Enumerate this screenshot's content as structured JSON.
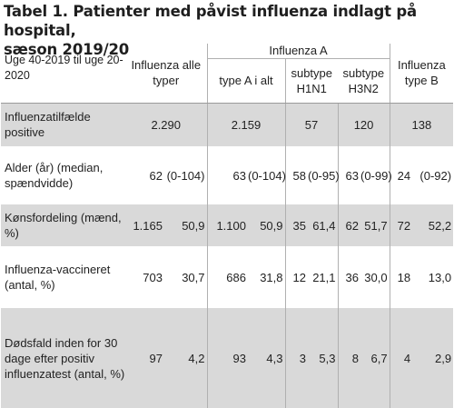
{
  "title_line1": "Tabel 1. Patienter med påvist influenza indlagt på hospital,",
  "title_line2": "sæson 2019/20",
  "header": {
    "period_label": "Uge 40-2019 til uge 20-2020",
    "all_types": "Influenza alle typer",
    "influenza_a": "Influenza A",
    "type_a_total": "type A i alt",
    "h1n1": "subtype H1N1",
    "h3n2": "subtype H3N2",
    "type_b": "Influenza type B"
  },
  "rows": [
    {
      "label": "Influenzatilfælde positive",
      "all": "2.290",
      "a_total": "2.159",
      "h1n1": "57",
      "h3n2": "120",
      "b": "138"
    },
    {
      "label": "Alder (år) (median, spændvidde)",
      "all_v": "62",
      "all_r": "(0-104)",
      "a_v": "63",
      "a_r": "(0-104)",
      "h1_v": "58",
      "h1_r": "(0-95)",
      "h3_v": "63",
      "h3_r": "(0-99)",
      "b_v": "24",
      "b_r": "(0-92)"
    },
    {
      "label": "Kønsfordeling (mænd, %)",
      "all_v": "1.165",
      "all_r": "50,9",
      "a_v": "1.100",
      "a_r": "50,9",
      "h1_v": "35",
      "h1_r": "61,4",
      "h3_v": "62",
      "h3_r": "51,7",
      "b_v": "72",
      "b_r": "52,2"
    },
    {
      "label": "Influenza-vaccineret (antal, %)",
      "all_v": "703",
      "all_r": "30,7",
      "a_v": "686",
      "a_r": "31,8",
      "h1_v": "12",
      "h1_r": "21,1",
      "h3_v": "36",
      "h3_r": "30,0",
      "b_v": "18",
      "b_r": "13,0"
    },
    {
      "label": "Dødsfald inden for 30 dage efter positiv influenzatest (antal, %)",
      "all_v": "97",
      "all_r": "4,2",
      "a_v": "93",
      "a_r": "4,3",
      "h1_v": "3",
      "h1_r": "5,3",
      "h3_v": "8",
      "h3_r": "6,7",
      "b_v": "4",
      "b_r": "2,9"
    }
  ]
}
